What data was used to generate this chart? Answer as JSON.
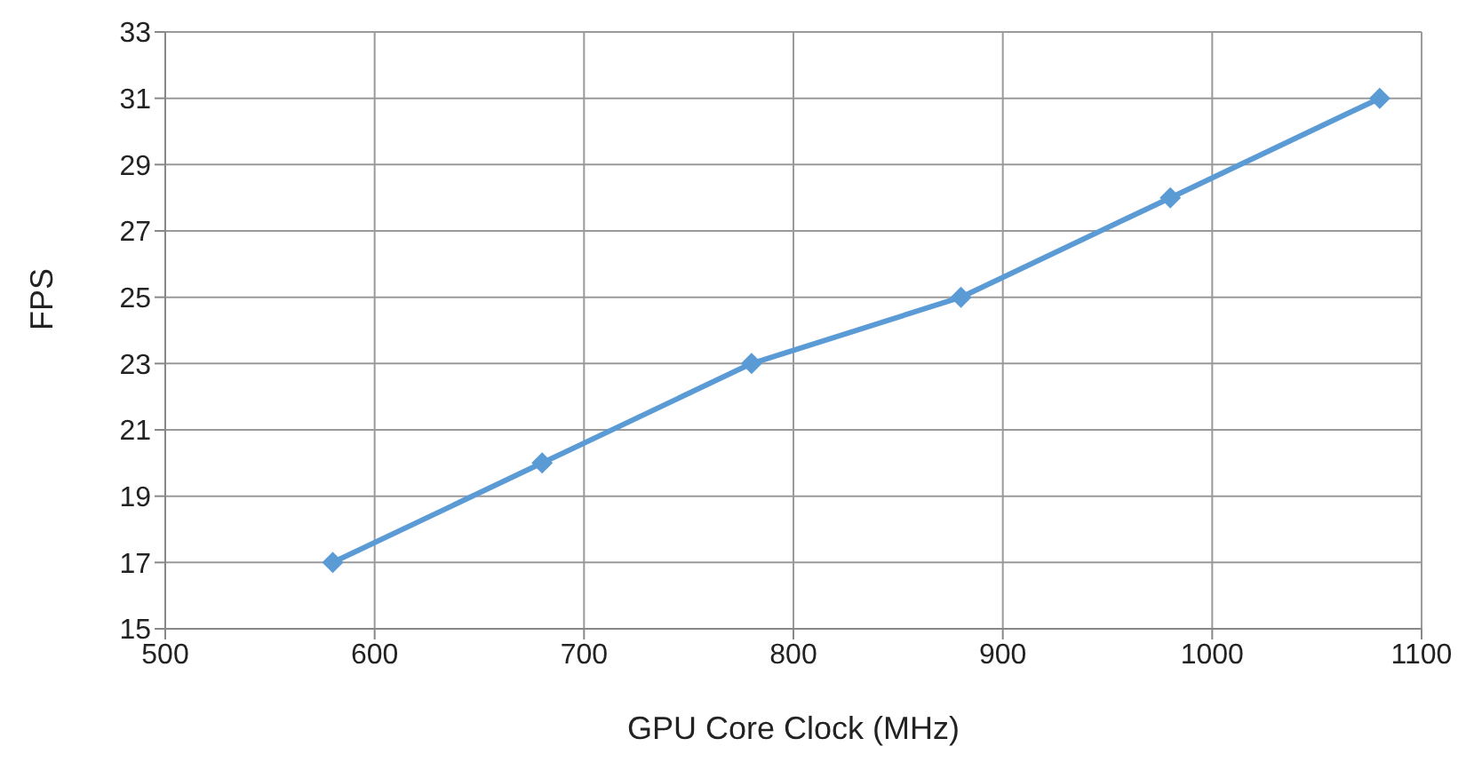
{
  "chart_data": {
    "type": "line",
    "xlabel": "GPU Core Clock (MHz)",
    "ylabel": "FPS",
    "x": [
      580,
      680,
      780,
      880,
      980,
      1080
    ],
    "series": [
      {
        "color": "#5b9bd5",
        "values": [
          17,
          20,
          23,
          25,
          28,
          31
        ]
      }
    ],
    "xlim": [
      500,
      1100
    ],
    "xticks": [
      500,
      600,
      700,
      800,
      900,
      1000,
      1100
    ],
    "ylim": [
      15,
      33
    ],
    "yticks": [
      15,
      17,
      19,
      21,
      23,
      25,
      27,
      29,
      31,
      33
    ],
    "grid": true,
    "legend": false,
    "marker": "diamond",
    "line_style": "solid"
  }
}
